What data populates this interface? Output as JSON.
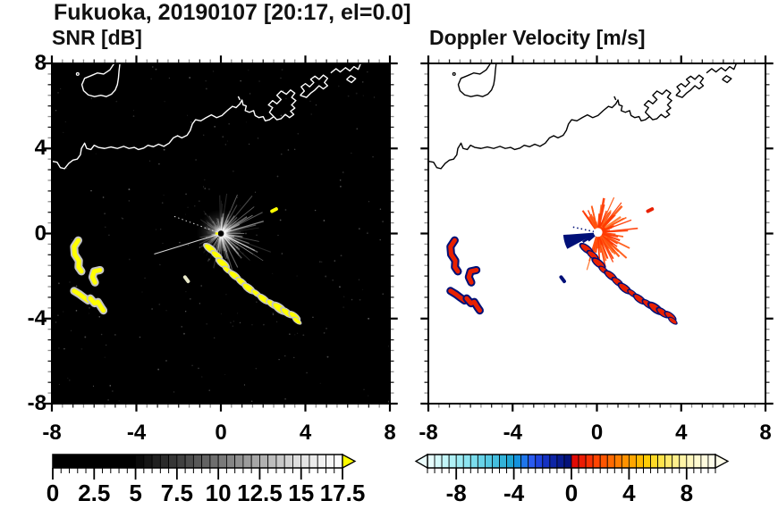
{
  "title": "Fukuoka, 20190107 [20:17, el=0.0]",
  "panels": [
    {
      "label": "SNR [dB]"
    },
    {
      "label": "Doppler Velocity [m/s]"
    }
  ],
  "axes": {
    "range": [
      -8,
      8
    ],
    "major_ticks": [
      -8,
      -4,
      0,
      4,
      8
    ],
    "minor_step": 0.5
  },
  "colorbars": [
    {
      "name": "snr",
      "range": [
        0,
        17.5
      ],
      "step": 0.5,
      "major_step": 2.5,
      "labels": [
        "0",
        "2.5",
        "5",
        "7.5",
        "10",
        "12.5",
        "15",
        "17.5"
      ],
      "label_values": [
        0,
        2.5,
        5,
        7.5,
        10,
        12.5,
        15,
        17.5
      ],
      "overflow_color": "#FFFF00",
      "colors": [
        "#000000",
        "#000000",
        "#000000",
        "#000000",
        "#000000",
        "#000000",
        "#000000",
        "#000000",
        "#000000",
        "#000000",
        "#0A0A0A",
        "#151515",
        "#202020",
        "#2B2B2B",
        "#363636",
        "#414141",
        "#4D4D4D",
        "#585858",
        "#636363",
        "#6E6E6E",
        "#797979",
        "#858585",
        "#909090",
        "#9B9B9B",
        "#A6A6A6",
        "#B1B1B1",
        "#BDBDBD",
        "#C8C8C8",
        "#D3D3D3",
        "#DEDEDE",
        "#E5E5E5",
        "#EBEBEB",
        "#F1F1F1",
        "#F6F6F6",
        "#FBFBFB"
      ]
    },
    {
      "name": "velocity",
      "range": [
        -10,
        10
      ],
      "step": 0.5,
      "major_step": 4,
      "labels": [
        "-8",
        "-4",
        "0",
        "4",
        "8"
      ],
      "label_values": [
        -8,
        -4,
        0,
        4,
        8
      ],
      "underflow_color": "#ECFEFE",
      "overflow_color": "#FFFDEA",
      "colors": [
        "#E6FDFD",
        "#D4FAFB",
        "#C2F6F9",
        "#B0F1F6",
        "#9EEBF3",
        "#8CE4F0",
        "#7ADCEC",
        "#68D3E8",
        "#56C9E3",
        "#44BEDE",
        "#32B2D8",
        "#20A5D2",
        "#1492DD",
        "#1F76EC",
        "#2A5BF0",
        "#1E44DE",
        "#1532C2",
        "#0D25A6",
        "#081B90",
        "#04127A",
        "#E00A06",
        "#EC1C04",
        "#F93002",
        "#FF4400",
        "#FF5600",
        "#FF6A00",
        "#FF7E00",
        "#FF9200",
        "#FFA600",
        "#FFBA00",
        "#FFCC06",
        "#FFDA26",
        "#FFE34A",
        "#FFEA6C",
        "#FFF08C",
        "#FFF4A6",
        "#FFF7BE",
        "#FFFAD0",
        "#FFFBDE",
        "#FFFDEA"
      ]
    }
  ],
  "chart_data": {
    "type": "heatmap",
    "title": "Fukuoka, 20190107 [20:17, el=0.0]",
    "x_range": [
      -8,
      8
    ],
    "y_range": [
      -8,
      8
    ],
    "radar_center": [
      0,
      0
    ],
    "panels": [
      {
        "title": "SNR [dB]",
        "units": "dB",
        "background": "#000000",
        "coast_color": "#FFFFFF",
        "echo_fill": "#FFFF00",
        "echo_halo": "#C4C4C4",
        "value_range": [
          0,
          17.5
        ]
      },
      {
        "title": "Doppler Velocity [m/s]",
        "units": "m/s",
        "background": "#FFFFFF",
        "coast_color": "#000000",
        "echo_fill": "#E82000",
        "echo_halo": "#001078",
        "value_range": [
          -10,
          10
        ]
      }
    ],
    "map": {
      "coast": [
        [
          -8,
          3.4
        ],
        [
          -7.75,
          3.35
        ],
        [
          -7.6,
          3.1
        ],
        [
          -7.4,
          3.05
        ],
        [
          -7.2,
          3.3
        ],
        [
          -7.0,
          3.45
        ],
        [
          -6.8,
          3.5
        ],
        [
          -6.65,
          3.7
        ],
        [
          -6.6,
          4.0
        ],
        [
          -6.45,
          4.25
        ],
        [
          -6.35,
          4.0
        ],
        [
          -6.15,
          3.95
        ],
        [
          -6.0,
          4.15
        ],
        [
          -5.8,
          4.05
        ],
        [
          -5.5,
          4.0
        ],
        [
          -5.2,
          4.07
        ],
        [
          -4.9,
          4.0
        ],
        [
          -4.6,
          4.1
        ],
        [
          -4.35,
          4.0
        ],
        [
          -4.1,
          4.05
        ],
        [
          -3.9,
          3.95
        ],
        [
          -3.65,
          4.02
        ],
        [
          -3.45,
          4.15
        ],
        [
          -3.2,
          4.08
        ],
        [
          -2.95,
          4.2
        ],
        [
          -2.7,
          4.1
        ],
        [
          -2.45,
          4.25
        ],
        [
          -2.25,
          4.5
        ],
        [
          -2.05,
          4.6
        ],
        [
          -1.85,
          4.5
        ],
        [
          -1.6,
          4.62
        ],
        [
          -1.45,
          4.85
        ],
        [
          -1.35,
          5.15
        ],
        [
          -1.2,
          5.35
        ],
        [
          -0.95,
          5.3
        ],
        [
          -0.7,
          5.45
        ],
        [
          -0.45,
          5.58
        ],
        [
          -0.2,
          5.45
        ],
        [
          0.05,
          5.55
        ],
        [
          0.3,
          5.78
        ],
        [
          0.55,
          5.98
        ],
        [
          0.72,
          5.92
        ],
        [
          0.9,
          6.1
        ],
        [
          1.0,
          6.28
        ],
        [
          1.05,
          6.05
        ],
        [
          1.2,
          6.0
        ],
        [
          1.15,
          5.78
        ],
        [
          1.35,
          5.7
        ],
        [
          1.55,
          5.78
        ],
        [
          1.62,
          5.55
        ],
        [
          1.8,
          5.45
        ],
        [
          2.0,
          5.5
        ],
        [
          2.1,
          5.3
        ],
        [
          2.3,
          5.35
        ],
        [
          2.5,
          5.5
        ]
      ],
      "pier1": [
        [
          2.5,
          5.5
        ],
        [
          2.3,
          5.7
        ],
        [
          2.45,
          5.92
        ],
        [
          2.25,
          6.05
        ],
        [
          2.45,
          6.25
        ],
        [
          2.65,
          6.1
        ],
        [
          2.85,
          6.3
        ],
        [
          2.65,
          6.5
        ],
        [
          2.85,
          6.7
        ],
        [
          3.1,
          6.55
        ],
        [
          3.3,
          6.75
        ],
        [
          3.5,
          6.6
        ],
        [
          3.35,
          6.4
        ],
        [
          3.55,
          6.25
        ],
        [
          3.35,
          6.05
        ],
        [
          3.5,
          5.9
        ],
        [
          3.3,
          5.75
        ],
        [
          3.45,
          5.6
        ],
        [
          3.25,
          5.45
        ],
        [
          3.05,
          5.6
        ],
        [
          2.85,
          5.4
        ],
        [
          2.65,
          5.35
        ],
        [
          2.5,
          5.5
        ]
      ],
      "pier2": [
        [
          3.75,
          6.5
        ],
        [
          3.95,
          6.7
        ],
        [
          3.8,
          6.9
        ],
        [
          4.0,
          7.05
        ],
        [
          4.2,
          6.9
        ],
        [
          4.4,
          7.1
        ],
        [
          4.25,
          7.25
        ],
        [
          4.45,
          7.4
        ],
        [
          4.65,
          7.25
        ],
        [
          4.85,
          7.45
        ],
        [
          5.05,
          7.3
        ],
        [
          4.9,
          7.1
        ],
        [
          5.05,
          6.95
        ],
        [
          4.85,
          6.8
        ],
        [
          4.65,
          6.95
        ],
        [
          4.45,
          6.75
        ],
        [
          4.25,
          6.6
        ],
        [
          4.05,
          6.4
        ],
        [
          3.75,
          6.5
        ]
      ],
      "top_right": [
        [
          5.2,
          7.55
        ],
        [
          5.45,
          7.75
        ],
        [
          5.65,
          7.6
        ],
        [
          5.9,
          7.8
        ],
        [
          6.1,
          7.65
        ],
        [
          6.3,
          7.85
        ],
        [
          6.5,
          7.72
        ],
        [
          6.62,
          8.0
        ]
      ],
      "detached": [
        [
          5.95,
          7.25
        ],
        [
          6.15,
          7.42
        ],
        [
          6.38,
          7.28
        ],
        [
          6.18,
          7.1
        ],
        [
          5.95,
          7.25
        ]
      ],
      "island": [
        [
          -5.05,
          8.0
        ],
        [
          -5.25,
          7.7
        ],
        [
          -5.55,
          7.5
        ],
        [
          -5.85,
          7.55
        ],
        [
          -6.15,
          7.42
        ],
        [
          -6.45,
          7.3
        ],
        [
          -6.58,
          7.0
        ],
        [
          -6.5,
          6.72
        ],
        [
          -6.28,
          6.52
        ],
        [
          -5.98,
          6.44
        ],
        [
          -5.68,
          6.5
        ],
        [
          -5.42,
          6.44
        ],
        [
          -5.18,
          6.55
        ],
        [
          -5.0,
          6.75
        ],
        [
          -4.9,
          7.0
        ],
        [
          -4.85,
          7.3
        ],
        [
          -4.82,
          7.65
        ],
        [
          -4.78,
          8.0
        ]
      ],
      "islet": [
        -6.78,
        7.5
      ],
      "apostrophe": [
        [
          0.82,
          6.45
        ],
        [
          0.9,
          6.28
        ]
      ]
    },
    "echoes": {
      "streak": [
        [
          -0.5,
          -0.72,
          0.3
        ],
        [
          -0.2,
          -1.02,
          0.26
        ],
        [
          0.08,
          -1.4,
          0.3
        ],
        [
          0.32,
          -1.72,
          0.22
        ],
        [
          0.65,
          -1.98,
          0.28
        ],
        [
          0.98,
          -2.28,
          0.26
        ],
        [
          1.32,
          -2.58,
          0.3
        ],
        [
          1.68,
          -2.82,
          0.22
        ],
        [
          2.02,
          -3.08,
          0.28
        ],
        [
          2.42,
          -3.32,
          0.26
        ],
        [
          2.78,
          -3.52,
          0.34
        ],
        [
          3.12,
          -3.72,
          0.28
        ],
        [
          3.48,
          -3.88,
          0.26
        ],
        [
          3.6,
          -4.1,
          0.2
        ]
      ],
      "streak_angle_deg": -37,
      "west_cluster": [
        [
          [
            -6.75,
            -0.32
          ],
          [
            -6.95,
            -0.62
          ],
          [
            -6.92,
            -0.98
          ],
          [
            -6.72,
            -1.28
          ],
          [
            -6.74,
            -1.58
          ],
          [
            -6.6,
            -1.78
          ]
        ],
        [
          [
            -5.72,
            -1.72
          ],
          [
            -6.0,
            -1.78
          ],
          [
            -6.08,
            -2.05
          ],
          [
            -5.96,
            -2.3
          ]
        ],
        [
          [
            -6.95,
            -2.7
          ],
          [
            -6.7,
            -2.85
          ],
          [
            -6.5,
            -3.0
          ],
          [
            -6.28,
            -3.15
          ]
        ],
        [
          [
            -6.18,
            -3.05
          ],
          [
            -5.98,
            -3.28
          ],
          [
            -5.82,
            -3.22
          ],
          [
            -5.66,
            -3.48
          ],
          [
            -5.56,
            -3.62
          ]
        ]
      ],
      "small_dash": [
        [
          -1.7,
          -2.05
        ],
        [
          -1.55,
          -2.25
        ]
      ],
      "ne_dot": [
        [
          2.42,
          1.05
        ],
        [
          2.62,
          1.15
        ]
      ]
    },
    "snr_starburst": {
      "center": [
        0,
        0
      ],
      "n_rays": 175,
      "r_max": 2.6,
      "seed": 7,
      "ray_color": "#FFFFFF",
      "long_rays": [
        [
          197,
          3.3,
          "solid"
        ],
        [
          160,
          2.35,
          "dotted"
        ]
      ],
      "shadow_wedges": [
        [
          228,
          236,
          1.9
        ],
        [
          243,
          247,
          1.3
        ]
      ]
    },
    "vel_starburst": {
      "center": [
        0.05,
        0.05
      ],
      "n_rays": 160,
      "r_max": 2.0,
      "seed": 11,
      "hole_r": 0.21,
      "ray_colors": [
        "#FF3800",
        "#FF5510",
        "#FF7228"
      ],
      "wedge": {
        "a0": 184,
        "a1": 208,
        "r": 1.65,
        "color": "#001078"
      },
      "navy_spikes": [
        [
          212,
          0.85
        ],
        [
          220,
          0.6
        ]
      ],
      "navy_dotted_ray": [
        168,
        1.3
      ]
    }
  }
}
